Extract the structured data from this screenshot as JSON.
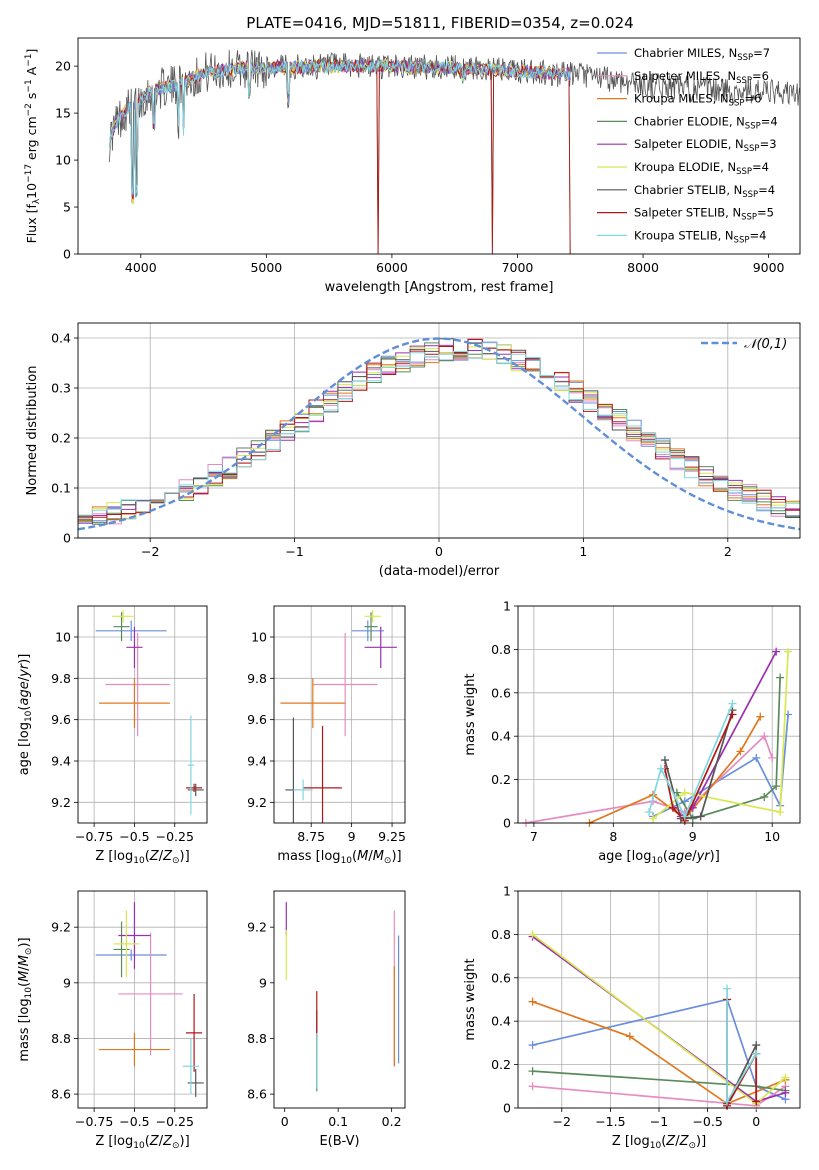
{
  "figure_title": "PLATE=0416, MJD=51811, FIBERID=0354, z=0.024",
  "colors": {
    "chabrier_miles": "#6a8fdc",
    "salpeter_miles": "#e68cc0",
    "kroupa_miles": "#e0781e",
    "chabrier_elodie": "#5a8a5a",
    "salpeter_elodie": "#9a30b0",
    "kroupa_elodie": "#d8e850",
    "chabrier_stelib": "#555555",
    "salpeter_stelib": "#b01818",
    "kroupa_stelib": "#80d8e0",
    "gauss": "#5f8fd8",
    "grid": "#b0b0b0"
  },
  "chart_data": [
    {
      "id": "spectrum",
      "type": "line",
      "xlabel": "wavelength [Angstrom, rest frame]",
      "ylabel": "Flux [f_λ 10^-17 erg cm^-2 s^-1 A^-1]",
      "xlim": [
        3500,
        9250
      ],
      "ylim": [
        0,
        23
      ],
      "xticks": [
        4000,
        5000,
        6000,
        7000,
        8000,
        9000
      ],
      "yticks": [
        0,
        5,
        10,
        15,
        20
      ],
      "grid": false,
      "legend_position": "top-right",
      "legend": [
        {
          "model": "Chabrier MILES",
          "n": "7",
          "color_key": "chabrier_miles"
        },
        {
          "model": "Salpeter MILES",
          "n": "6",
          "color_key": "salpeter_miles"
        },
        {
          "model": "Kroupa MILES",
          "n": "6",
          "color_key": "kroupa_miles"
        },
        {
          "model": "Chabrier ELODIE",
          "n": "4",
          "color_key": "chabrier_elodie"
        },
        {
          "model": "Salpeter ELODIE",
          "n": "3",
          "color_key": "salpeter_elodie"
        },
        {
          "model": "Kroupa ELODIE",
          "n": "4",
          "color_key": "kroupa_elodie"
        },
        {
          "model": "Chabrier STELIB",
          "n": "4",
          "color_key": "chabrier_stelib"
        },
        {
          "model": "Salpeter STELIB",
          "n": "5",
          "color_key": "salpeter_stelib"
        },
        {
          "model": "Kroupa STELIB",
          "n": "4",
          "color_key": "kroupa_stelib"
        }
      ],
      "continuum": [
        [
          3750,
          12
        ],
        [
          3800,
          14
        ],
        [
          3900,
          15.5
        ],
        [
          4000,
          16.5
        ],
        [
          4100,
          17.5
        ],
        [
          4300,
          18
        ],
        [
          4500,
          19.3
        ],
        [
          4800,
          19.8
        ],
        [
          5000,
          19.8
        ],
        [
          5500,
          20
        ],
        [
          6000,
          20
        ],
        [
          6500,
          19.8
        ],
        [
          7000,
          19.5
        ],
        [
          7500,
          19
        ],
        [
          7800,
          18.5
        ],
        [
          8000,
          18
        ],
        [
          8500,
          17.5
        ],
        [
          9000,
          17.2
        ],
        [
          9250,
          17
        ]
      ],
      "absorption_lines": [
        [
          3934,
          6
        ],
        [
          3969,
          7
        ],
        [
          4102,
          14
        ],
        [
          4300,
          13
        ],
        [
          4340,
          13.5
        ],
        [
          4861,
          17.5
        ],
        [
          5175,
          16.5
        ],
        [
          5890,
          0
        ],
        [
          6563,
          19
        ],
        [
          6800,
          0
        ],
        [
          7420,
          0
        ]
      ]
    },
    {
      "id": "residuals",
      "type": "line",
      "xlabel": "(data-model)/error",
      "ylabel": "Normed distribution",
      "xlim": [
        -2.5,
        2.5
      ],
      "ylim": [
        0,
        0.43
      ],
      "xticks": [
        -2,
        -1,
        0,
        1,
        2
      ],
      "yticks": [
        0.0,
        0.1,
        0.2,
        0.3,
        0.4
      ],
      "grid": true,
      "legend_position": "top-right",
      "gauss_label": "𝒩(0,1)"
    },
    {
      "id": "age_vs_Z",
      "type": "scatter",
      "xlabel": "Z [log10(Z/Z⊙)]",
      "ylabel": "age [log10(age/yr)]",
      "xlim": [
        -0.85,
        -0.05
      ],
      "ylim": [
        9.1,
        10.15
      ],
      "xticks": [
        -0.75,
        -0.5,
        -0.25
      ],
      "yticks": [
        9.2,
        9.4,
        9.6,
        9.8,
        10.0
      ],
      "grid": true,
      "points": [
        {
          "x": -0.52,
          "xerr": 0.22,
          "y": 10.03,
          "yerr": 0.05,
          "color_key": "chabrier_miles"
        },
        {
          "x": -0.48,
          "xerr": 0.2,
          "y": 9.77,
          "yerr": 0.25,
          "color_key": "salpeter_miles"
        },
        {
          "x": -0.5,
          "xerr": 0.22,
          "y": 9.68,
          "yerr": 0.12,
          "color_key": "kroupa_miles"
        },
        {
          "x": -0.58,
          "xerr": 0.05,
          "y": 10.05,
          "yerr": 0.07,
          "color_key": "chabrier_elodie"
        },
        {
          "x": -0.5,
          "xerr": 0.05,
          "y": 9.95,
          "yerr": 0.1,
          "color_key": "salpeter_elodie"
        },
        {
          "x": -0.57,
          "xerr": 0.07,
          "y": 10.1,
          "yerr": 0.03,
          "color_key": "kroupa_elodie"
        },
        {
          "x": -0.12,
          "xerr": 0.05,
          "y": 9.26,
          "yerr": 0.03,
          "color_key": "chabrier_stelib"
        },
        {
          "x": -0.13,
          "xerr": 0.05,
          "y": 9.27,
          "yerr": 0.02,
          "color_key": "salpeter_stelib"
        },
        {
          "x": -0.15,
          "xerr": 0.02,
          "y": 9.38,
          "yerr": 0.24,
          "color_key": "kroupa_stelib"
        }
      ]
    },
    {
      "id": "age_vs_mass",
      "type": "scatter",
      "xlabel": "mass [log10(M/M⊙)]",
      "ylabel": "",
      "xlim": [
        8.52,
        9.33
      ],
      "ylim": [
        9.1,
        10.15
      ],
      "xticks": [
        8.75,
        9.0,
        9.25
      ],
      "yticks": [
        9.2,
        9.4,
        9.6,
        9.8,
        10.0
      ],
      "grid": true,
      "points": [
        {
          "x": 9.1,
          "xerr": 0.1,
          "y": 10.03,
          "yerr": 0.05,
          "color_key": "chabrier_miles"
        },
        {
          "x": 8.96,
          "xerr": 0.2,
          "y": 9.77,
          "yerr": 0.25,
          "color_key": "salpeter_miles"
        },
        {
          "x": 8.76,
          "xerr": 0.2,
          "y": 9.68,
          "yerr": 0.12,
          "color_key": "kroupa_miles"
        },
        {
          "x": 9.12,
          "xerr": 0.04,
          "y": 10.05,
          "yerr": 0.07,
          "color_key": "chabrier_elodie"
        },
        {
          "x": 9.18,
          "xerr": 0.1,
          "y": 9.95,
          "yerr": 0.1,
          "color_key": "salpeter_elodie"
        },
        {
          "x": 9.13,
          "xerr": 0.05,
          "y": 10.1,
          "yerr": 0.03,
          "color_key": "kroupa_elodie"
        },
        {
          "x": 8.64,
          "xerr": 0.05,
          "y": 9.26,
          "yerr": 0.35,
          "color_key": "chabrier_stelib"
        },
        {
          "x": 8.82,
          "xerr": 0.12,
          "y": 9.27,
          "yerr": 0.3,
          "color_key": "salpeter_stelib"
        },
        {
          "x": 8.7,
          "xerr": 0.06,
          "y": 9.26,
          "yerr": 0.05,
          "color_key": "kroupa_stelib"
        }
      ]
    },
    {
      "id": "weight_vs_age",
      "type": "line",
      "xlabel": "age [log10(age/yr)]",
      "ylabel": "mass weight",
      "xlim": [
        6.8,
        10.35
      ],
      "ylim": [
        0,
        1.0
      ],
      "xticks": [
        7,
        8,
        9,
        10
      ],
      "yticks": [
        0.0,
        0.2,
        0.4,
        0.6,
        0.8,
        1.0
      ],
      "grid": true,
      "series": [
        {
          "color_key": "chabrier_miles",
          "x": [
            8.5,
            8.9,
            9.8,
            10.1,
            10.2
          ],
          "y": [
            0.03,
            0.1,
            0.3,
            0.08,
            0.5
          ]
        },
        {
          "color_key": "salpeter_miles",
          "x": [
            6.9,
            8.5,
            8.9,
            9.9,
            10.0
          ],
          "y": [
            0.0,
            0.1,
            0.05,
            0.4,
            0.3
          ]
        },
        {
          "color_key": "kroupa_miles",
          "x": [
            7.7,
            8.5,
            8.9,
            9.6,
            9.85
          ],
          "y": [
            0.0,
            0.13,
            0.02,
            0.33,
            0.49
          ]
        },
        {
          "color_key": "chabrier_elodie",
          "x": [
            8.8,
            9.0,
            9.9,
            10.05,
            10.1
          ],
          "y": [
            0.14,
            0.02,
            0.12,
            0.17,
            0.67
          ]
        },
        {
          "color_key": "salpeter_elodie",
          "x": [
            8.85,
            9.0,
            10.05
          ],
          "y": [
            0.03,
            0.07,
            0.79
          ]
        },
        {
          "color_key": "kroupa_elodie",
          "x": [
            8.5,
            8.9,
            10.1,
            10.2
          ],
          "y": [
            0.02,
            0.14,
            0.05,
            0.79
          ]
        },
        {
          "color_key": "chabrier_stelib",
          "x": [
            8.65,
            8.85,
            9.1,
            9.5
          ],
          "y": [
            0.29,
            0.02,
            0.03,
            0.52
          ]
        },
        {
          "color_key": "salpeter_stelib",
          "x": [
            8.65,
            8.75,
            8.9,
            9.5
          ],
          "y": [
            0.25,
            0.07,
            0.01,
            0.5
          ]
        },
        {
          "color_key": "kroupa_stelib",
          "x": [
            8.45,
            8.6,
            8.9,
            9.5
          ],
          "y": [
            0.05,
            0.25,
            0.03,
            0.55
          ]
        }
      ]
    },
    {
      "id": "mass_vs_Z",
      "type": "scatter",
      "xlabel": "Z [log10(Z/Z⊙)]",
      "ylabel": "mass [log10(M/M⊙)]",
      "xlim": [
        -0.85,
        -0.05
      ],
      "ylim": [
        8.55,
        9.33
      ],
      "xticks": [
        -0.75,
        -0.5,
        -0.25
      ],
      "yticks": [
        8.6,
        8.8,
        9.0,
        9.2
      ],
      "grid": true,
      "points": [
        {
          "x": -0.52,
          "xerr": 0.22,
          "y": 9.1,
          "yerr": 0.02,
          "color_key": "chabrier_miles"
        },
        {
          "x": -0.4,
          "xerr": 0.2,
          "y": 8.96,
          "yerr": 0.22,
          "color_key": "salpeter_miles"
        },
        {
          "x": -0.5,
          "xerr": 0.22,
          "y": 8.76,
          "yerr": 0.06,
          "color_key": "kroupa_miles"
        },
        {
          "x": -0.58,
          "xerr": 0.05,
          "y": 9.12,
          "yerr": 0.1,
          "color_key": "chabrier_elodie"
        },
        {
          "x": -0.5,
          "xerr": 0.1,
          "y": 9.17,
          "yerr": 0.12,
          "color_key": "salpeter_elodie"
        },
        {
          "x": -0.55,
          "xerr": 0.08,
          "y": 9.14,
          "yerr": 0.12,
          "color_key": "kroupa_elodie"
        },
        {
          "x": -0.12,
          "xerr": 0.05,
          "y": 8.64,
          "yerr": 0.05,
          "color_key": "chabrier_stelib"
        },
        {
          "x": -0.13,
          "xerr": 0.05,
          "y": 8.82,
          "yerr": 0.14,
          "color_key": "salpeter_stelib"
        },
        {
          "x": -0.15,
          "xerr": 0.05,
          "y": 8.7,
          "yerr": 0.1,
          "color_key": "kroupa_stelib"
        }
      ]
    },
    {
      "id": "mass_vs_ebv",
      "type": "scatter",
      "xlabel": "E(B-V)",
      "ylabel": "",
      "xlim": [
        -0.02,
        0.225
      ],
      "ylim": [
        8.55,
        9.33
      ],
      "xticks": [
        0.0,
        0.1,
        0.2
      ],
      "yticks": [
        8.6,
        8.8,
        9.0,
        9.2
      ],
      "grid": false,
      "points": [
        {
          "x": 0.213,
          "xerr": 0,
          "y": 8.94,
          "yerr": 0.23,
          "color_key": "chabrier_miles"
        },
        {
          "x": 0.205,
          "xerr": 0,
          "y": 8.98,
          "yerr": 0.28,
          "color_key": "salpeter_miles"
        },
        {
          "x": 0.205,
          "xerr": 0,
          "y": 8.88,
          "yerr": 0.18,
          "color_key": "kroupa_miles"
        },
        {
          "x": 0.06,
          "xerr": 0,
          "y": 8.72,
          "yerr": 0.11,
          "color_key": "chabrier_elodie"
        },
        {
          "x": 0.003,
          "xerr": 0,
          "y": 9.23,
          "yerr": 0.06,
          "color_key": "salpeter_elodie"
        },
        {
          "x": 0.003,
          "xerr": 0,
          "y": 9.1,
          "yerr": 0.09,
          "color_key": "kroupa_elodie"
        },
        {
          "x": 0.06,
          "xerr": 0,
          "y": 8.76,
          "yerr": 0.14,
          "color_key": "chabrier_stelib"
        },
        {
          "x": 0.06,
          "xerr": 0,
          "y": 8.88,
          "yerr": 0.09,
          "color_key": "salpeter_stelib"
        },
        {
          "x": 0.06,
          "xerr": 0,
          "y": 8.72,
          "yerr": 0.1,
          "color_key": "kroupa_stelib"
        }
      ]
    },
    {
      "id": "weight_vs_Z",
      "type": "line",
      "xlabel": "Z [log10(Z/Z⊙)]",
      "ylabel": "mass weight",
      "xlim": [
        -2.45,
        0.45
      ],
      "ylim": [
        0,
        1.0
      ],
      "xticks": [
        -2.0,
        -1.5,
        -1.0,
        -0.5,
        0.0
      ],
      "yticks": [
        0.0,
        0.2,
        0.4,
        0.6,
        0.8,
        1.0
      ],
      "grid": true,
      "series": [
        {
          "color_key": "chabrier_miles",
          "x": [
            -2.3,
            -0.3,
            0.0,
            0.3
          ],
          "y": [
            0.29,
            0.5,
            0.1,
            0.04
          ]
        },
        {
          "color_key": "salpeter_miles",
          "x": [
            -2.3,
            0.0,
            0.3
          ],
          "y": [
            0.1,
            0.01,
            0.1
          ]
        },
        {
          "color_key": "kroupa_miles",
          "x": [
            -2.3,
            -1.3,
            -0.3,
            0.3
          ],
          "y": [
            0.49,
            0.33,
            0.02,
            0.13
          ]
        },
        {
          "color_key": "chabrier_elodie",
          "x": [
            -2.3,
            0.0,
            0.3
          ],
          "y": [
            0.17,
            0.1,
            0.08
          ]
        },
        {
          "color_key": "salpeter_elodie",
          "x": [
            -2.3,
            0.0,
            0.3
          ],
          "y": [
            0.79,
            0.03,
            0.07
          ]
        },
        {
          "color_key": "kroupa_elodie",
          "x": [
            -2.3,
            0.0,
            0.3
          ],
          "y": [
            0.8,
            0.02,
            0.14
          ]
        },
        {
          "color_key": "chabrier_stelib",
          "x": [
            -0.3,
            0.0,
            0.0
          ],
          "y": [
            0.02,
            0.29,
            0.03
          ]
        },
        {
          "color_key": "salpeter_stelib",
          "x": [
            -0.3,
            -0.3,
            0.0,
            0.0
          ],
          "y": [
            0.5,
            0.01,
            0.25,
            0.03
          ]
        },
        {
          "color_key": "kroupa_stelib",
          "x": [
            -0.3,
            -0.3,
            0.0
          ],
          "y": [
            0.55,
            0.03,
            0.25
          ]
        }
      ]
    }
  ]
}
